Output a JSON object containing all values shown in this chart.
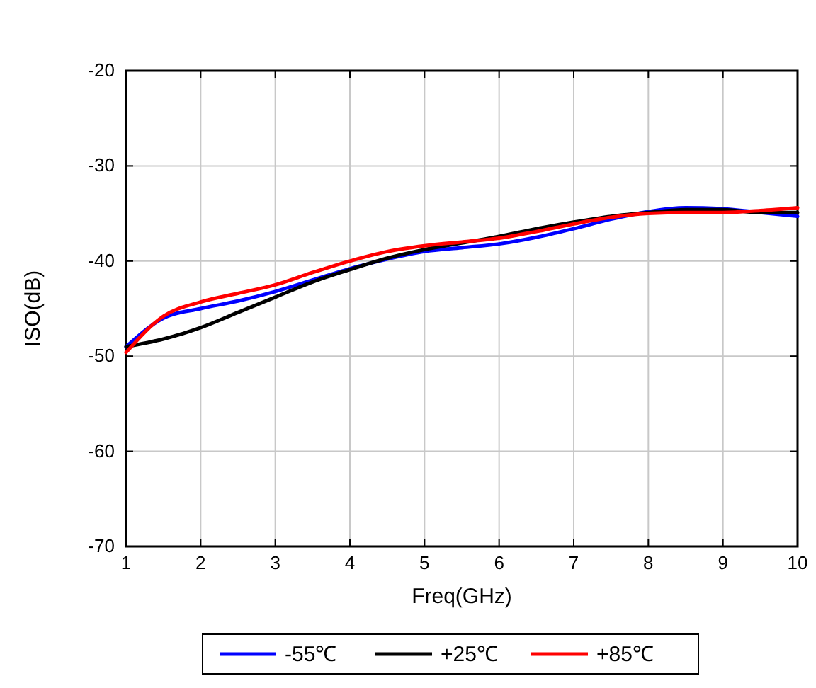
{
  "chart_data": {
    "type": "line",
    "xlabel": "Freq(GHz)",
    "ylabel": "ISO(dB)",
    "x": [
      1,
      1.5,
      2,
      2.5,
      3,
      3.5,
      4,
      4.5,
      5,
      5.5,
      6,
      6.5,
      7,
      7.5,
      8,
      8.5,
      9,
      9.5,
      10
    ],
    "xlim": [
      1,
      10
    ],
    "xticks": [
      1,
      2,
      3,
      4,
      5,
      6,
      7,
      8,
      9,
      10
    ],
    "ylim": [
      -70,
      -20
    ],
    "yticks": [
      -70,
      -60,
      -50,
      -40,
      -30,
      -20
    ],
    "grid": true,
    "legend": "bottom",
    "marker": "none",
    "line_style": "solid",
    "series": [
      {
        "name": "-55℃",
        "color": "#0000ff",
        "values": [
          -49,
          -46,
          -45,
          -44.2,
          -43.2,
          -42,
          -40.8,
          -39.8,
          -39,
          -38.6,
          -38.2,
          -37.5,
          -36.6,
          -35.6,
          -34.8,
          -34.4,
          -34.5,
          -34.9,
          -35.3
        ]
      },
      {
        "name": "+25℃",
        "color": "#000000",
        "values": [
          -49,
          -48.2,
          -47,
          -45.4,
          -43.8,
          -42.2,
          -40.9,
          -39.7,
          -38.8,
          -38.1,
          -37.4,
          -36.6,
          -35.9,
          -35.3,
          -34.9,
          -34.6,
          -34.6,
          -34.9,
          -34.9
        ]
      },
      {
        "name": "+85℃",
        "color": "#ff0000",
        "values": [
          -49.6,
          -45.8,
          -44.3,
          -43.4,
          -42.5,
          -41.2,
          -40,
          -39,
          -38.4,
          -38,
          -37.6,
          -36.9,
          -36.1,
          -35.4,
          -35,
          -34.9,
          -34.9,
          -34.7,
          -34.4
        ]
      }
    ]
  }
}
